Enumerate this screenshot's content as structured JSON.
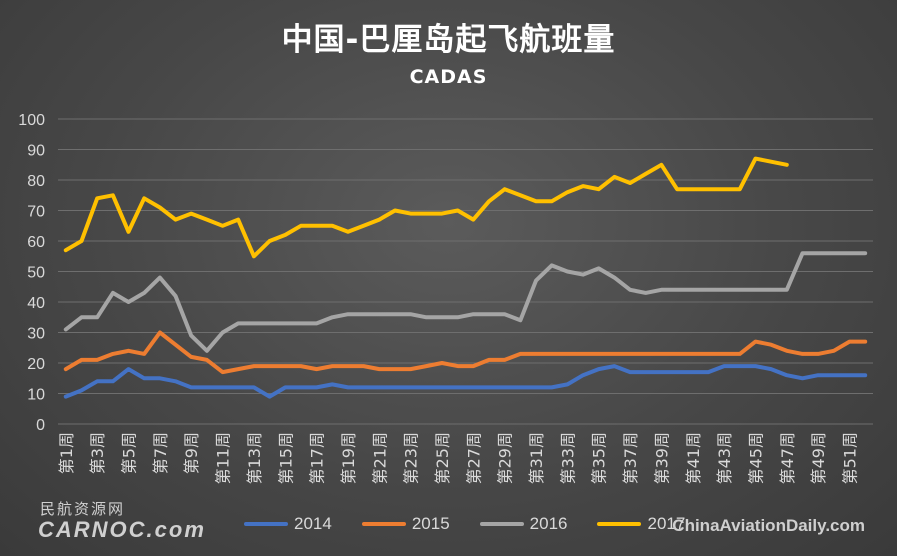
{
  "chart_data": {
    "type": "line",
    "title": "中国-巴厘岛起飞航班量",
    "subtitle": "CADAS",
    "ylim": [
      0,
      100
    ],
    "yticks": [
      0,
      10,
      20,
      30,
      40,
      50,
      60,
      70,
      80,
      90,
      100
    ],
    "x_tick_labels": [
      "第1周",
      "第3周",
      "第5周",
      "第7周",
      "第9周",
      "第11周",
      "第13周",
      "第15周",
      "第17周",
      "第19周",
      "第21周",
      "第23周",
      "第25周",
      "第27周",
      "第29周",
      "第31周",
      "第33周",
      "第35周",
      "第37周",
      "第39周",
      "第41周",
      "第43周",
      "第45周",
      "第47周",
      "第49周",
      "第51周"
    ],
    "grid": true,
    "legend_position": "bottom",
    "series": [
      {
        "name": "2014",
        "color": "#4472c4",
        "values": [
          9,
          11,
          14,
          14,
          18,
          15,
          15,
          14,
          12,
          12,
          12,
          12,
          12,
          9,
          12,
          12,
          12,
          13,
          12,
          12,
          12,
          12,
          12,
          12,
          12,
          12,
          12,
          12,
          12,
          12,
          12,
          12,
          13,
          16,
          18,
          19,
          17,
          17,
          17,
          17,
          17,
          17,
          19,
          19,
          19,
          18,
          16,
          15,
          16,
          16,
          16,
          16,
          16,
          16,
          16,
          16,
          16,
          16,
          16,
          16,
          16,
          16,
          16,
          16,
          16,
          16,
          16,
          16,
          16,
          16,
          16,
          16,
          16,
          16,
          16,
          16,
          16,
          16,
          16,
          16,
          16,
          16,
          16,
          16,
          16,
          16,
          16,
          16,
          16,
          16,
          16,
          16,
          16,
          16,
          16,
          16,
          16,
          16,
          16,
          16,
          16,
          16,
          16,
          16,
          16,
          16,
          16,
          16,
          16,
          16,
          16,
          16,
          16,
          16,
          16,
          16,
          16,
          16,
          16,
          16,
          16,
          16,
          16,
          16,
          16,
          16,
          16,
          16,
          16,
          16,
          16,
          16,
          16,
          16,
          16,
          16,
          16,
          16,
          16,
          16,
          16,
          16,
          16,
          16,
          16,
          16,
          16,
          16,
          16,
          16,
          16,
          16,
          16,
          16,
          16,
          16,
          16,
          16,
          16,
          16,
          16,
          16,
          16,
          16,
          16,
          16,
          16,
          16,
          16,
          16,
          16,
          16,
          16,
          16,
          16,
          16,
          16,
          16,
          16,
          16,
          16,
          16,
          16,
          16,
          16,
          16,
          16,
          16,
          16,
          16,
          16,
          16,
          16,
          16,
          16,
          16,
          16,
          16,
          16,
          16,
          16,
          16,
          16,
          16,
          16,
          16,
          16,
          16,
          16,
          16,
          16,
          16,
          16,
          16,
          16,
          16,
          16,
          16,
          16,
          16,
          16,
          16,
          16,
          16,
          16,
          16,
          16,
          16,
          16,
          16,
          16,
          16,
          16,
          16,
          16,
          16,
          16,
          16,
          16,
          16,
          16,
          16,
          16,
          16,
          16,
          16,
          16,
          16,
          16,
          16,
          16,
          16,
          16,
          16,
          16,
          16,
          16,
          16,
          16,
          16,
          16,
          16,
          16,
          16,
          16,
          16,
          16,
          16,
          16,
          16,
          16,
          16,
          16,
          16,
          16,
          16,
          16,
          16,
          16,
          16,
          16,
          16,
          16,
          16,
          16,
          16,
          16,
          16,
          16,
          16,
          16,
          16,
          16,
          16,
          16,
          16,
          16,
          16,
          16,
          16,
          16
        ]
      },
      {
        "name": "2015",
        "color": "#ed7d31",
        "values": [
          18,
          21,
          21,
          23,
          24,
          23,
          30,
          26,
          22,
          21,
          17,
          18,
          19,
          19,
          19,
          19,
          18,
          19,
          19,
          19,
          18,
          18,
          18,
          19,
          20,
          19,
          19,
          21,
          21,
          23,
          23,
          23,
          23,
          23,
          23,
          23,
          23,
          23,
          23,
          23,
          23,
          23,
          23,
          23,
          27,
          26,
          24,
          23,
          23,
          24,
          27,
          27,
          27,
          27,
          29,
          30,
          30,
          34
        ]
      },
      {
        "name": "2016",
        "color": "#a5a5a5",
        "values": [
          31,
          35,
          35,
          43,
          40,
          43,
          48,
          42,
          29,
          24,
          30,
          33,
          33,
          33,
          33,
          33,
          33,
          35,
          36,
          36,
          36,
          36,
          36,
          35,
          35,
          35,
          36,
          36,
          36,
          34,
          47,
          52,
          50,
          49,
          51,
          48,
          44,
          43,
          44,
          44,
          44,
          44,
          44,
          44,
          44,
          44,
          44,
          56,
          56,
          56,
          56,
          56,
          56,
          56,
          56,
          56,
          56,
          56
        ]
      },
      {
        "name": "2017",
        "color": "#ffc000",
        "values": [
          57,
          60,
          74,
          75,
          63,
          74,
          71,
          67,
          69,
          67,
          65,
          67,
          55,
          60,
          62,
          65,
          65,
          65,
          63,
          65,
          67,
          70,
          69,
          69,
          69,
          70,
          67,
          73,
          77,
          75,
          73,
          73,
          76,
          78,
          77,
          81,
          79,
          82,
          85,
          77,
          77,
          77,
          77,
          77,
          87,
          86,
          85
        ]
      }
    ]
  },
  "legend": {
    "items": [
      {
        "label": "2014",
        "color": "#4472c4"
      },
      {
        "label": "2015",
        "color": "#ed7d31"
      },
      {
        "label": "2016",
        "color": "#a5a5a5"
      },
      {
        "label": "2017",
        "color": "#ffc000"
      }
    ]
  },
  "watermarks": {
    "left_cn": "民航资源网",
    "left_en": "CARNOC.com",
    "right": "ChinaAviationDaily.com"
  }
}
